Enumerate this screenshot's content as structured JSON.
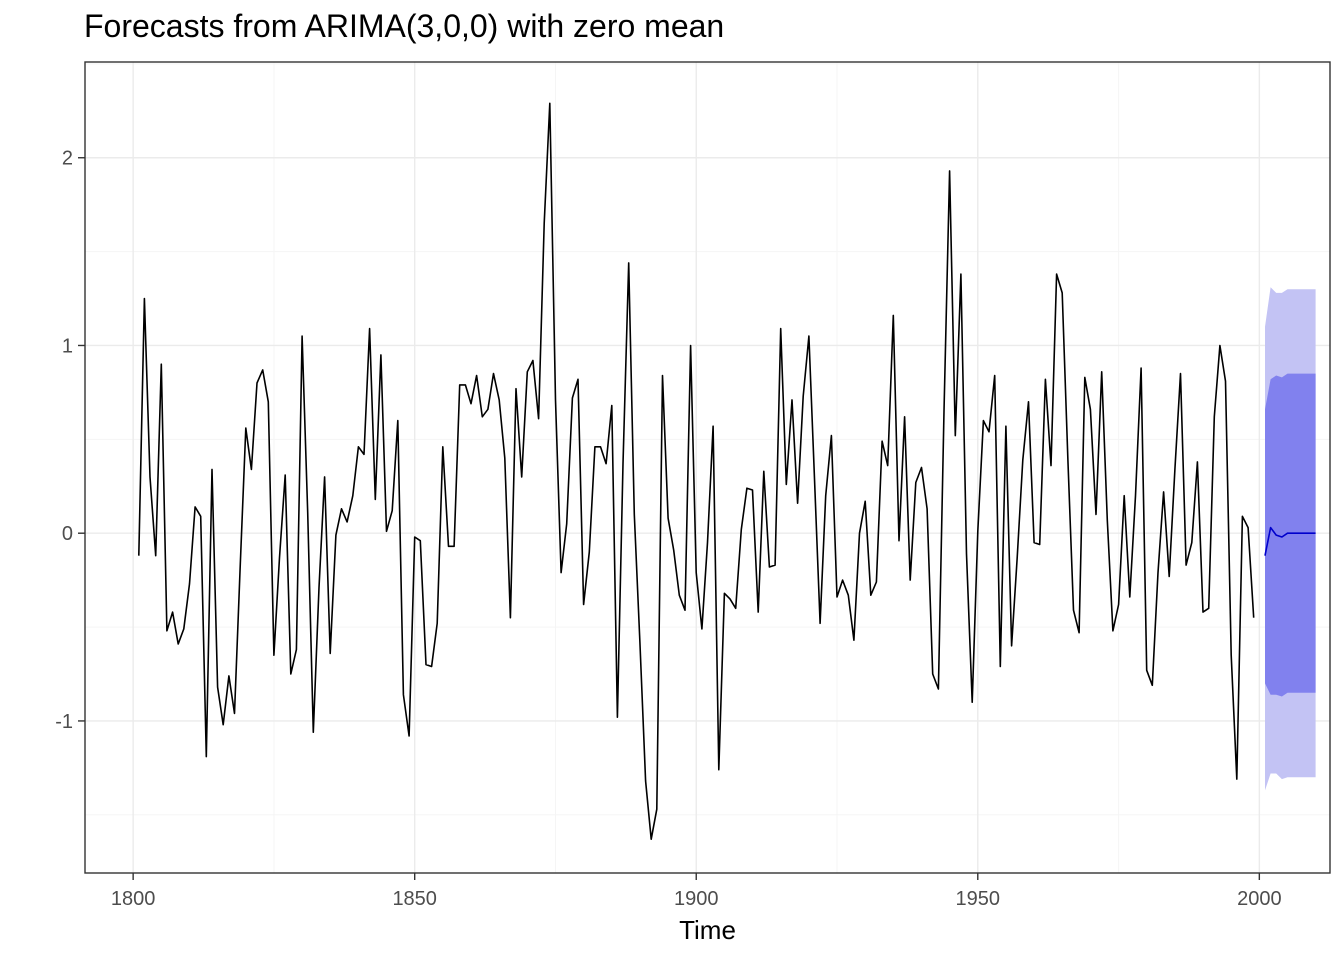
{
  "chart_data": {
    "type": "line",
    "title": "Forecasts from ARIMA(3,0,0) with zero mean",
    "xlabel": "Time",
    "ylabel": "",
    "xlim": [
      1791.45,
      2012.55
    ],
    "ylim": [
      -1.81,
      2.51
    ],
    "x_ticks": [
      1800,
      1850,
      1900,
      1950,
      2000
    ],
    "x_tick_labels": [
      "1800",
      "1850",
      "1900",
      "1950",
      "2000"
    ],
    "y_ticks": [
      -1,
      0,
      1,
      2
    ],
    "y_tick_labels": [
      "-1",
      "0",
      "1",
      "2"
    ],
    "grid": true,
    "legend": "none",
    "colors": {
      "observed": "#000000",
      "forecast_mean": "#0000cc",
      "pi_80": "#8181ee",
      "pi_95": "#c3c3f4",
      "grid_major": "#ebebeb",
      "grid_minor": "#f5f5f5",
      "panel_border": "#333333"
    },
    "series": [
      {
        "role": "observed",
        "x_start": 1801,
        "values": [
          -0.12,
          1.25,
          0.3,
          -0.12,
          0.9,
          -0.52,
          -0.42,
          -0.59,
          -0.51,
          -0.27,
          0.14,
          0.09,
          -1.19,
          0.34,
          -0.82,
          -1.02,
          -0.76,
          -0.96,
          -0.19,
          0.56,
          0.34,
          0.8,
          0.87,
          0.7,
          -0.65,
          -0.13,
          0.31,
          -0.75,
          -0.62,
          1.05,
          0.11,
          -1.06,
          -0.29,
          0.3,
          -0.64,
          -0.01,
          0.13,
          0.06,
          0.2,
          0.46,
          0.42,
          1.09,
          0.18,
          0.95,
          0.01,
          0.12,
          0.6,
          -0.86,
          -1.08,
          -0.02,
          -0.04,
          -0.7,
          -0.71,
          -0.48,
          0.46,
          -0.07,
          -0.07,
          0.79,
          0.79,
          0.69,
          0.84,
          0.62,
          0.66,
          0.85,
          0.71,
          0.4,
          -0.45,
          0.77,
          0.3,
          0.86,
          0.92,
          0.61,
          1.65,
          2.29,
          0.71,
          -0.21,
          0.05,
          0.72,
          0.82,
          -0.38,
          -0.1,
          0.46,
          0.46,
          0.37,
          0.68,
          -0.98,
          0.37,
          1.44,
          0.1,
          -0.58,
          -1.32,
          -1.63,
          -1.47,
          0.84,
          0.08,
          -0.09,
          -0.33,
          -0.41,
          1.0,
          -0.21,
          -0.51,
          -0.05,
          0.57,
          -1.26,
          -0.32,
          -0.35,
          -0.4,
          0.02,
          0.24,
          0.23,
          -0.42,
          0.33,
          -0.18,
          -0.17,
          1.09,
          0.26,
          0.71,
          0.16,
          0.73,
          1.05,
          0.29,
          -0.48,
          0.2,
          0.52,
          -0.34,
          -0.25,
          -0.33,
          -0.57,
          0.0,
          0.17,
          -0.33,
          -0.26,
          0.49,
          0.36,
          1.16,
          -0.04,
          0.62,
          -0.25,
          0.27,
          0.35,
          0.13,
          -0.75,
          -0.83,
          0.65,
          1.93,
          0.52,
          1.38,
          -0.11,
          -0.9,
          0.01,
          0.6,
          0.54,
          0.84,
          -0.71,
          0.57,
          -0.6,
          -0.13,
          0.39,
          0.7,
          -0.05,
          -0.06,
          0.82,
          0.36,
          1.38,
          1.28,
          0.39,
          -0.41,
          -0.53,
          0.83,
          0.66,
          0.1,
          0.86,
          0.07,
          -0.52,
          -0.38,
          0.2,
          -0.34,
          0.2,
          0.88,
          -0.73,
          -0.81,
          -0.21,
          0.22,
          -0.23,
          0.34,
          0.85,
          -0.17,
          -0.05,
          0.38,
          -0.42,
          -0.4,
          0.62,
          1.0,
          0.81,
          -0.65,
          -1.31,
          0.09,
          0.03,
          -0.45
        ]
      },
      {
        "role": "forecast_mean",
        "x": [
          2001,
          2002,
          2003,
          2004,
          2005,
          2006,
          2007,
          2008,
          2009,
          2010
        ],
        "values": [
          -0.12,
          0.03,
          -0.01,
          -0.02,
          0.0,
          0.0,
          0.0,
          0.0,
          0.0,
          0.0
        ]
      },
      {
        "role": "pi_80",
        "x": [
          2001,
          2002,
          2003,
          2004,
          2005,
          2006,
          2007,
          2008,
          2009,
          2010
        ],
        "lower": [
          -0.8,
          -0.86,
          -0.86,
          -0.87,
          -0.85,
          -0.85,
          -0.85,
          -0.85,
          -0.85,
          -0.85
        ],
        "upper": [
          0.66,
          0.82,
          0.84,
          0.83,
          0.85,
          0.85,
          0.85,
          0.85,
          0.85,
          0.85
        ]
      },
      {
        "role": "pi_95",
        "x": [
          2001,
          2002,
          2003,
          2004,
          2005,
          2006,
          2007,
          2008,
          2009,
          2010
        ],
        "lower": [
          -1.37,
          -1.28,
          -1.28,
          -1.31,
          -1.3,
          -1.3,
          -1.3,
          -1.3,
          -1.3,
          -1.3
        ],
        "upper": [
          1.1,
          1.31,
          1.28,
          1.28,
          1.3,
          1.3,
          1.3,
          1.3,
          1.3,
          1.3
        ]
      }
    ]
  }
}
